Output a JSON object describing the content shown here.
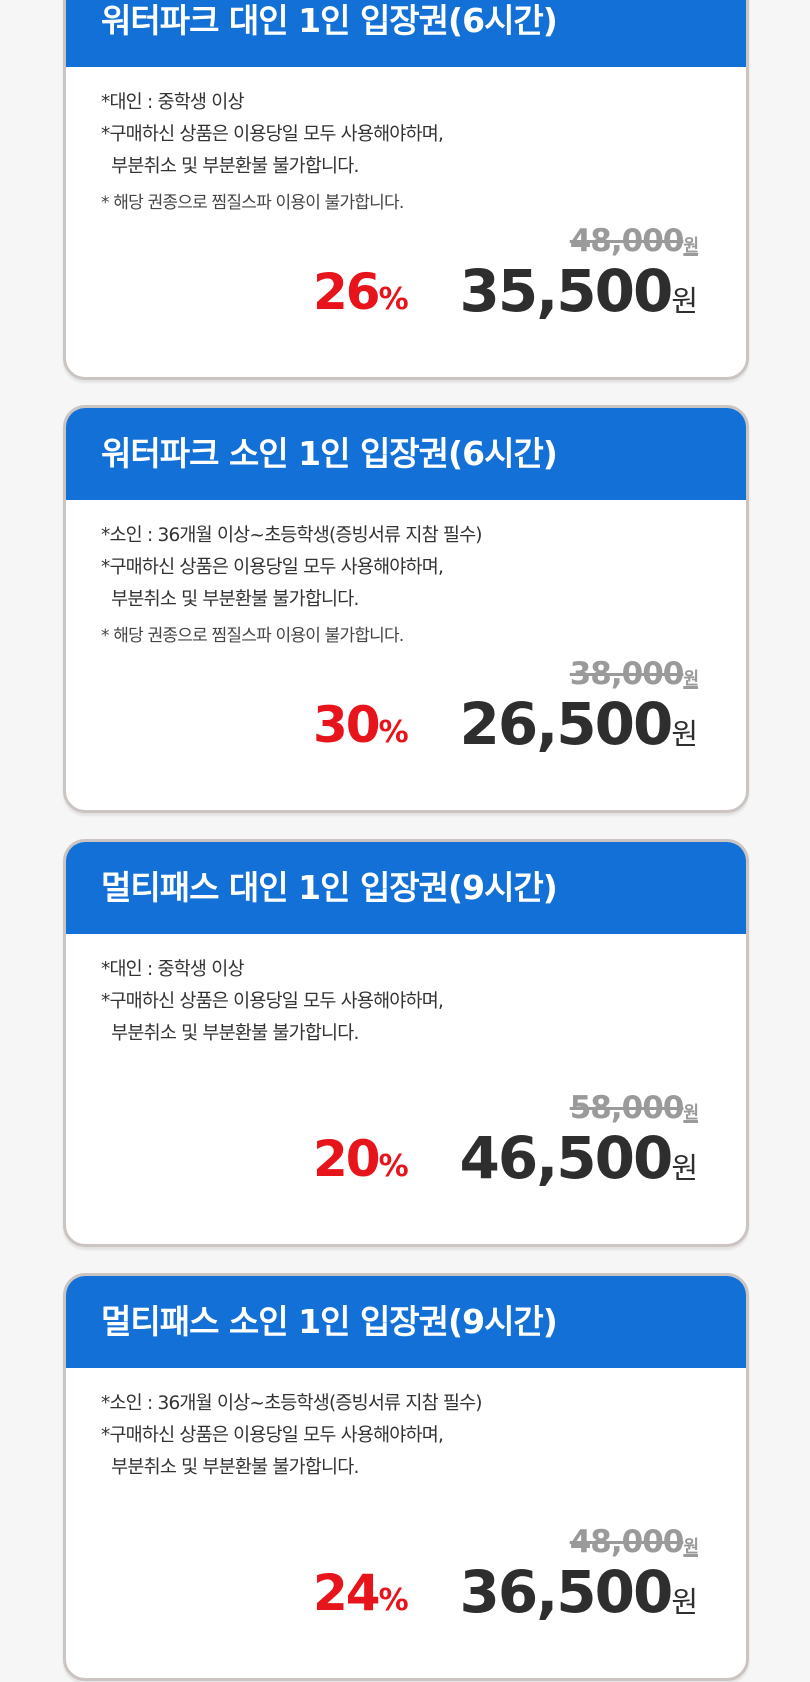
{
  "cards": [
    {
      "title": "워터파크 대인 1인 입장권(6시간)",
      "notes": [
        "*대인 : 중학생 이상",
        "*구매하신 상품은 이용당일 모두 사용해야하며,",
        "  부분취소 및 부분환불 불가합니다.",
        "* 해당 권종으로 찜질스파 이용이 불가합니다."
      ],
      "original_price": "48,000",
      "discount": "26",
      "price": "35,500"
    },
    {
      "title": "워터파크 소인 1인 입장권(6시간)",
      "notes": [
        "*소인 : 36개월 이상~초등학생(증빙서류 지참 필수)",
        "*구매하신 상품은 이용당일 모두 사용해야하며,",
        "  부분취소 및 부분환불 불가합니다.",
        "* 해당 권종으로 찜질스파 이용이 불가합니다."
      ],
      "original_price": "38,000",
      "discount": "30",
      "price": "26,500"
    },
    {
      "title": "멀티패스 대인 1인 입장권(9시간)",
      "notes": [
        "*대인 : 중학생 이상",
        "*구매하신 상품은 이용당일 모두 사용해야하며,",
        "  부분취소 및 부분환불 불가합니다.",
        ""
      ],
      "original_price": "58,000",
      "discount": "20",
      "price": "46,500"
    },
    {
      "title": "멀티패스 소인 1인 입장권(9시간)",
      "notes": [
        "*소인 : 36개월 이상~초등학생(증빙서류 지참 필수)",
        "*구매하신 상품은 이용당일 모두 사용해야하며,",
        "  부분취소 및 부분환불 불가합니다.",
        ""
      ],
      "original_price": "48,000",
      "discount": "24",
      "price": "36,500"
    }
  ],
  "currency": "원",
  "percent": "%",
  "colors": {
    "header": "#1270d6",
    "discount": "#e8141b",
    "price": "#2e2e2e",
    "old_price": "#9a9a9a"
  }
}
